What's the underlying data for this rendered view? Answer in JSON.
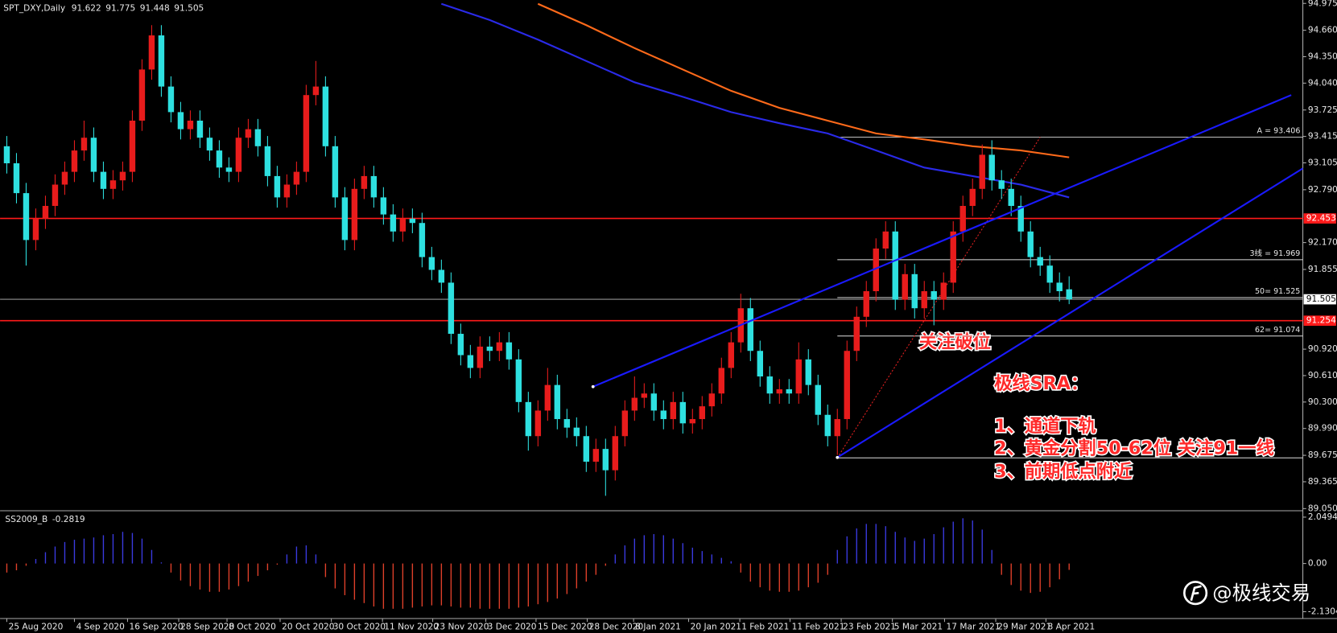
{
  "chart_data": {
    "type": "candlestick",
    "title": "SPT_DXY,Daily",
    "up_color": "#e81c1c",
    "down_color": "#2ee0e0",
    "xlim": [
      -0.7,
      134.2
    ],
    "ylim": [
      89.05,
      94.975
    ],
    "yticks": [
      94.975,
      {
        "value": 94.66,
        "label": "94.660"
      },
      {
        "value": 94.35,
        "label": "94.350"
      },
      {
        "value": 94.04,
        "label": "94.040"
      },
      93.725,
      93.415,
      93.105,
      {
        "value": 92.79,
        "label": "92.790"
      },
      {
        "value": 92.17,
        "label": "92.170"
      },
      91.855,
      {
        "value": 90.92,
        "label": "90.920"
      },
      {
        "value": 90.61,
        "label": "90.610"
      },
      {
        "value": 90.3,
        "label": "90.300"
      },
      {
        "value": 89.99,
        "label": "89.990"
      },
      89.675,
      89.365,
      {
        "value": 89.05,
        "label": "89.050"
      }
    ],
    "xticks": [
      {
        "value": 0,
        "label": "25 Aug 2020"
      },
      {
        "value": 7.0,
        "label": "4 Sep 2020"
      },
      {
        "value": 12.5,
        "label": "16 Sep 2020"
      },
      {
        "value": 17.8,
        "label": "28 Sep 2020"
      },
      {
        "value": 22.8,
        "label": "8 Oct 2020"
      },
      {
        "value": 28.3,
        "label": "20 Oct 2020"
      },
      {
        "value": 33.6,
        "label": "30 Oct 2020"
      },
      {
        "value": 38.9,
        "label": "11 Nov 2020"
      },
      {
        "value": 44.1,
        "label": "23 Nov 2020"
      },
      {
        "value": 49.6,
        "label": "3 Dec 2020"
      },
      {
        "value": 54.8,
        "label": "15 Dec 2020"
      },
      {
        "value": 60.1,
        "label": "28 Dec 2020"
      },
      {
        "value": 64.9,
        "label": "8 Jan 2021"
      },
      {
        "value": 70.6,
        "label": "20 Jan 2021"
      },
      {
        "value": 75.9,
        "label": "1 Feb 2021"
      },
      {
        "value": 81.1,
        "label": "11 Feb 2021"
      },
      {
        "value": 86.4,
        "label": "23 Feb 2021"
      },
      {
        "value": 91.7,
        "label": "5 Mar 2021"
      },
      {
        "value": 97.1,
        "label": "17 Mar 2021"
      },
      {
        "value": 102.4,
        "label": "29 Mar 2021"
      },
      {
        "value": 107.6,
        "label": "8 Apr 2021"
      }
    ],
    "candles": [
      [
        93.3,
        93.42,
        92.98,
        93.1
      ],
      [
        93.1,
        93.22,
        92.63,
        92.75
      ],
      [
        92.75,
        92.87,
        91.9,
        92.2
      ],
      [
        92.2,
        92.57,
        92.08,
        92.45
      ],
      [
        92.45,
        92.72,
        92.33,
        92.6
      ],
      [
        92.6,
        92.97,
        92.48,
        92.85
      ],
      [
        92.85,
        93.12,
        92.73,
        93.0
      ],
      [
        93.0,
        93.37,
        92.88,
        93.25
      ],
      [
        93.25,
        93.6,
        93.13,
        93.4
      ],
      [
        93.4,
        93.52,
        92.88,
        93.0
      ],
      [
        93.0,
        93.12,
        92.68,
        92.8
      ],
      [
        92.8,
        93.02,
        92.68,
        92.9
      ],
      [
        92.9,
        93.12,
        92.78,
        93.0
      ],
      [
        93.0,
        93.72,
        92.88,
        93.6
      ],
      [
        93.6,
        94.32,
        93.48,
        94.2
      ],
      [
        94.2,
        94.72,
        94.08,
        94.6
      ],
      [
        94.6,
        94.72,
        93.88,
        94.0
      ],
      [
        94.0,
        94.12,
        93.58,
        93.7
      ],
      [
        93.7,
        93.82,
        93.38,
        93.5
      ],
      [
        93.5,
        93.72,
        93.38,
        93.6
      ],
      [
        93.6,
        93.72,
        93.28,
        93.4
      ],
      [
        93.4,
        93.52,
        93.13,
        93.25
      ],
      [
        93.25,
        93.37,
        92.93,
        93.05
      ],
      [
        93.05,
        93.17,
        92.88,
        93.0
      ],
      [
        93.0,
        93.52,
        92.88,
        93.4
      ],
      [
        93.4,
        93.62,
        93.28,
        93.5
      ],
      [
        93.5,
        93.62,
        93.18,
        93.3
      ],
      [
        93.3,
        93.42,
        92.83,
        92.95
      ],
      [
        92.95,
        93.07,
        92.58,
        92.7
      ],
      [
        92.7,
        92.97,
        92.58,
        92.85
      ],
      [
        92.85,
        93.12,
        92.73,
        93.0
      ],
      [
        93.0,
        94.02,
        92.88,
        93.9
      ],
      [
        93.9,
        94.3,
        93.78,
        94.0
      ],
      [
        94.0,
        94.12,
        93.18,
        93.3
      ],
      [
        93.3,
        93.42,
        92.58,
        92.7
      ],
      [
        92.7,
        92.82,
        92.08,
        92.2
      ],
      [
        92.2,
        92.92,
        92.08,
        92.8
      ],
      [
        92.8,
        93.07,
        92.68,
        92.95
      ],
      [
        92.95,
        93.07,
        92.58,
        92.7
      ],
      [
        92.7,
        92.82,
        92.38,
        92.5
      ],
      [
        92.5,
        92.62,
        92.18,
        92.3
      ],
      [
        92.3,
        92.57,
        92.18,
        92.45
      ],
      [
        92.45,
        92.57,
        92.28,
        92.4
      ],
      [
        92.4,
        92.52,
        91.88,
        92.0
      ],
      [
        92.0,
        92.12,
        91.73,
        91.85
      ],
      [
        91.85,
        91.97,
        91.58,
        91.7
      ],
      [
        91.7,
        91.82,
        90.98,
        91.1
      ],
      [
        91.1,
        91.22,
        90.73,
        90.85
      ],
      [
        90.85,
        90.97,
        90.58,
        90.7
      ],
      [
        90.7,
        91.07,
        90.58,
        90.95
      ],
      [
        90.95,
        91.07,
        90.78,
        90.9
      ],
      [
        90.9,
        91.12,
        90.78,
        91.0
      ],
      [
        91.0,
        91.12,
        90.68,
        90.8
      ],
      [
        90.8,
        90.92,
        90.18,
        90.3
      ],
      [
        90.3,
        90.42,
        89.73,
        89.9
      ],
      [
        89.9,
        90.32,
        89.78,
        90.2
      ],
      [
        90.2,
        90.7,
        90.08,
        90.5
      ],
      [
        90.5,
        90.62,
        89.98,
        90.1
      ],
      [
        90.1,
        90.22,
        89.88,
        90.0
      ],
      [
        90.0,
        90.12,
        89.78,
        89.9
      ],
      [
        89.9,
        90.02,
        89.48,
        89.6
      ],
      [
        89.6,
        89.87,
        89.48,
        89.75
      ],
      [
        89.75,
        89.87,
        89.2,
        89.5
      ],
      [
        89.5,
        90.02,
        89.38,
        89.9
      ],
      [
        89.9,
        90.32,
        89.78,
        90.2
      ],
      [
        90.2,
        90.6,
        90.08,
        90.35
      ],
      [
        90.35,
        90.52,
        90.23,
        90.4
      ],
      [
        90.4,
        90.52,
        90.08,
        90.2
      ],
      [
        90.2,
        90.32,
        89.98,
        90.1
      ],
      [
        90.1,
        90.42,
        89.98,
        90.3
      ],
      [
        90.3,
        90.42,
        89.93,
        90.05
      ],
      [
        90.05,
        90.22,
        89.93,
        90.1
      ],
      [
        90.1,
        90.37,
        89.98,
        90.25
      ],
      [
        90.25,
        90.52,
        90.13,
        90.4
      ],
      [
        90.4,
        90.82,
        90.28,
        90.7
      ],
      [
        90.7,
        91.12,
        90.58,
        91.0
      ],
      [
        91.0,
        91.57,
        90.88,
        91.4
      ],
      [
        91.4,
        91.52,
        90.78,
        90.9
      ],
      [
        90.9,
        91.02,
        90.48,
        90.6
      ],
      [
        90.6,
        90.72,
        90.28,
        90.4
      ],
      [
        90.4,
        90.57,
        90.28,
        90.45
      ],
      [
        90.45,
        90.57,
        90.28,
        90.4
      ],
      [
        90.4,
        91.0,
        90.28,
        90.8
      ],
      [
        90.8,
        90.92,
        90.38,
        90.5
      ],
      [
        90.5,
        90.62,
        90.03,
        90.15
      ],
      [
        90.15,
        90.27,
        89.78,
        89.9
      ],
      [
        89.9,
        90.22,
        89.68,
        90.1
      ],
      [
        90.1,
        91.02,
        89.98,
        90.9
      ],
      [
        90.9,
        91.42,
        90.78,
        91.3
      ],
      [
        91.3,
        91.72,
        91.18,
        91.6
      ],
      [
        91.6,
        92.22,
        91.48,
        92.1
      ],
      [
        92.1,
        92.42,
        91.98,
        92.3
      ],
      [
        92.3,
        92.42,
        91.38,
        91.5
      ],
      [
        91.5,
        91.92,
        91.38,
        91.8
      ],
      [
        91.8,
        91.92,
        91.28,
        91.4
      ],
      [
        91.4,
        91.72,
        91.28,
        91.6
      ],
      [
        91.6,
        91.72,
        91.2,
        91.5
      ],
      [
        91.5,
        91.82,
        91.38,
        91.7
      ],
      [
        91.7,
        92.42,
        91.58,
        92.3
      ],
      [
        92.3,
        92.72,
        92.18,
        92.6
      ],
      [
        92.6,
        92.92,
        92.48,
        92.8
      ],
      [
        92.8,
        93.32,
        92.68,
        93.2
      ],
      [
        93.2,
        93.37,
        92.78,
        92.9
      ],
      [
        92.9,
        93.02,
        92.68,
        92.8
      ],
      [
        92.8,
        92.92,
        92.48,
        92.6
      ],
      [
        92.6,
        92.72,
        92.18,
        92.3
      ],
      [
        92.3,
        92.42,
        91.88,
        92.0
      ],
      [
        92.0,
        92.12,
        91.78,
        91.9
      ],
      [
        91.9,
        92.02,
        91.58,
        91.7
      ],
      [
        91.7,
        91.82,
        91.48,
        91.6
      ],
      [
        91.622,
        91.775,
        91.448,
        91.505
      ]
    ],
    "moving_averages": [
      {
        "color": "#ff6a1a",
        "x": [
          55,
          60,
          65,
          70,
          75,
          80,
          85,
          90,
          95,
          100,
          105,
          110
        ],
        "values": [
          94.97,
          94.72,
          94.45,
          94.2,
          93.95,
          93.75,
          93.6,
          93.45,
          93.38,
          93.3,
          93.25,
          93.17
        ]
      },
      {
        "color": "#2a2ae8",
        "x": [
          45,
          50,
          55,
          60,
          65,
          70,
          75,
          80,
          85,
          90,
          95,
          100,
          105,
          110
        ],
        "values": [
          94.97,
          94.78,
          94.55,
          94.3,
          94.05,
          93.88,
          93.7,
          93.57,
          93.45,
          93.25,
          93.05,
          92.95,
          92.85,
          92.7
        ]
      }
    ],
    "trendlines": [
      {
        "color": "#1a1aff",
        "x": [
          60.7,
          133
        ],
        "values": [
          90.48,
          93.9
        ]
      },
      {
        "color": "#1a1aff",
        "x": [
          86,
          134.2
        ],
        "values": [
          89.65,
          93.04
        ]
      }
    ],
    "hlines": [
      {
        "value": 92.453,
        "color": "#ff1a1a"
      },
      {
        "value": 91.254,
        "color": "#ff1a1a"
      }
    ],
    "last_price": 91.505,
    "fibonacci": {
      "x": [
        86,
        134.2
      ],
      "diagonal_x": [
        86,
        107
      ],
      "levels": [
        {
          "value": 93.406,
          "label": "A = 93.406"
        },
        {
          "value": 91.969,
          "label": "3线 = 91.969"
        },
        {
          "value": 91.525,
          "label": "50= 91.525"
        },
        {
          "value": 91.074,
          "label": "62= 91.074"
        },
        {
          "value": 89.645
        }
      ]
    },
    "annotations": [
      "关注破位",
      "极线SRA：",
      "1、通道下轨",
      "2、黄金分割50-62位 关注91一线",
      "3、前期低点附近"
    ],
    "oscillator": {
      "name": "SS2009_B",
      "up_color": "#3a3ae0",
      "down_color": "#e0402a",
      "ylim": [
        -2.1304,
        2.0494
      ],
      "yticks": [
        2.0494,
        {
          "value": 0,
          "label": "0.00"
        },
        -2.1304
      ],
      "values": [
        -0.4,
        -0.3,
        -0.1,
        0.2,
        0.5,
        0.75,
        0.95,
        1.05,
        1.1,
        1.15,
        1.25,
        1.3,
        1.4,
        1.35,
        1.1,
        0.6,
        0.05,
        -0.4,
        -0.75,
        -1.0,
        -1.15,
        -1.25,
        -1.25,
        -1.15,
        -1.0,
        -0.8,
        -0.55,
        -0.3,
        -0.05,
        0.4,
        0.75,
        0.8,
        0.4,
        -0.6,
        -1.1,
        -1.4,
        -1.6,
        -1.75,
        -1.9,
        -2.0,
        -2.0,
        -2.0,
        -1.95,
        -1.9,
        -1.85,
        -1.85,
        -1.9,
        -1.95,
        -1.95,
        -2.0,
        -2.0,
        -2.0,
        -2.0,
        -1.95,
        -1.9,
        -1.8,
        -1.7,
        -1.55,
        -1.35,
        -1.1,
        -0.8,
        -0.5,
        -0.1,
        0.4,
        0.8,
        1.1,
        1.25,
        1.3,
        1.25,
        1.1,
        0.9,
        0.7,
        0.55,
        0.4,
        0.25,
        0.1,
        -0.4,
        -0.8,
        -1.05,
        -1.2,
        -1.25,
        -1.25,
        -1.2,
        -1.05,
        -0.85,
        -0.5,
        0.6,
        1.2,
        1.55,
        1.75,
        1.75,
        1.65,
        1.4,
        1.15,
        1.0,
        1.1,
        1.3,
        1.6,
        1.85,
        2.0,
        1.9,
        1.5,
        0.6,
        -0.5,
        -0.95,
        -1.2,
        -1.3,
        -1.25,
        -1.05,
        -0.7,
        -0.2819
      ]
    },
    "watermark": "@极线交易"
  }
}
